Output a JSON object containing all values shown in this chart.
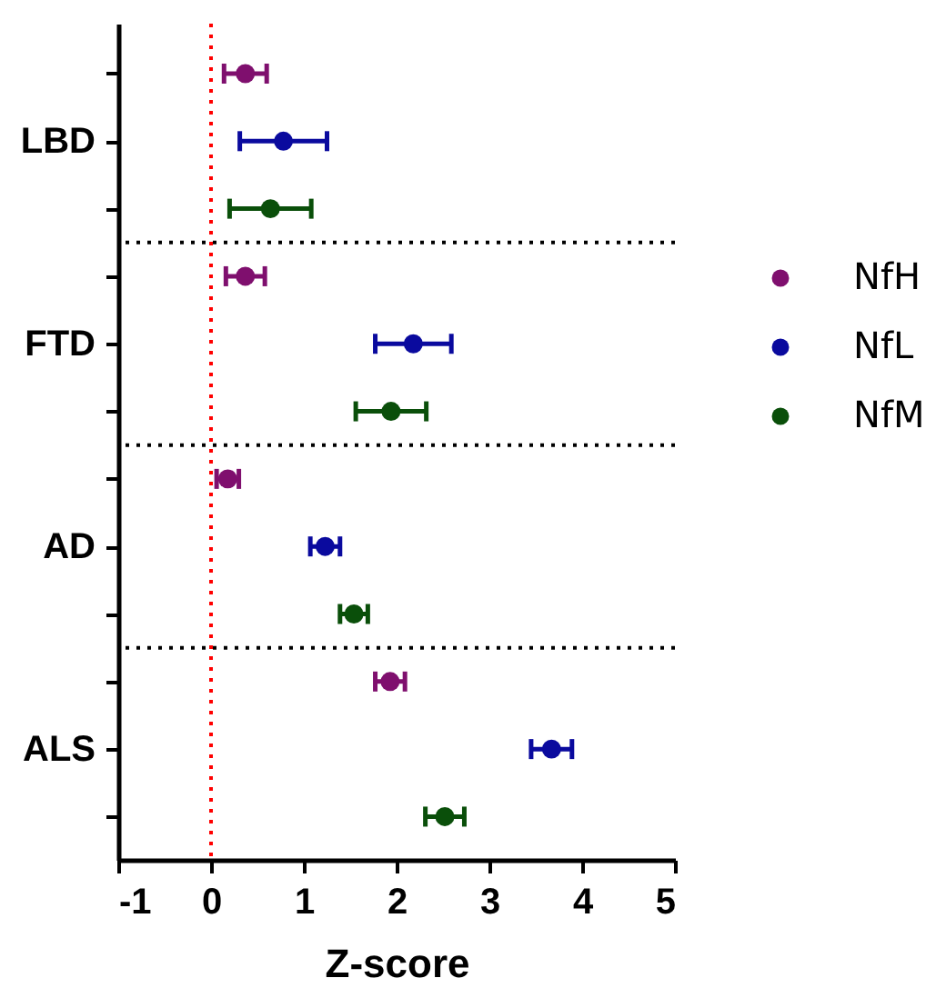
{
  "chart_data": {
    "type": "scatter",
    "orientation": "horizontal",
    "xlabel": "Z-score",
    "xlim": [
      -1,
      5
    ],
    "xticks": [
      -1,
      0,
      1,
      2,
      3,
      4,
      5
    ],
    "categories": [
      null,
      "LBD",
      null,
      null,
      "FTD",
      null,
      null,
      "AD",
      null,
      null,
      "ALS",
      null
    ],
    "series": [
      {
        "name": "NfH",
        "color": "#7f0f6e",
        "values": [
          0.37,
          null,
          null,
          0.37,
          null,
          null,
          0.18,
          null,
          null,
          1.93,
          null,
          null
        ],
        "errors": [
          0.23,
          null,
          null,
          0.21,
          null,
          null,
          0.12,
          null,
          null,
          0.16,
          null,
          null
        ]
      },
      {
        "name": "NfL",
        "color": "#0a0a9e",
        "values": [
          null,
          0.78,
          null,
          null,
          2.18,
          null,
          null,
          1.23,
          null,
          null,
          3.67,
          null
        ],
        "errors": [
          null,
          0.47,
          null,
          null,
          0.41,
          null,
          null,
          0.16,
          null,
          null,
          0.22,
          null
        ]
      },
      {
        "name": "NfM",
        "color": "#0a4f0a",
        "values": [
          null,
          null,
          0.64,
          null,
          null,
          1.94,
          null,
          null,
          1.54,
          null,
          null,
          2.52
        ],
        "errors": [
          null,
          null,
          0.44,
          null,
          null,
          0.38,
          null,
          null,
          0.15,
          null,
          null,
          0.21
        ]
      }
    ],
    "ref_lines": [
      {
        "axis": "x",
        "value": 0,
        "color": "#ff0000",
        "line_style": "dotted"
      }
    ],
    "grid": false,
    "legend": "right",
    "marker": "circle"
  }
}
